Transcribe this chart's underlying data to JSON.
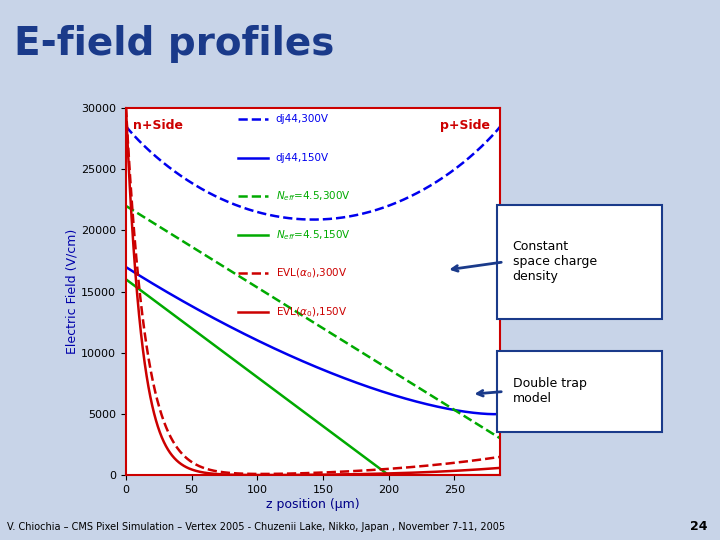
{
  "title": "E-field profiles",
  "xlabel": "z position (μm)",
  "ylabel": "Electric Field (V/cm)",
  "xlim": [
    0,
    285
  ],
  "ylim": [
    0,
    30000
  ],
  "yticks": [
    0,
    5000,
    10000,
    15000,
    20000,
    25000,
    30000
  ],
  "xticks": [
    0,
    50,
    100,
    150,
    200,
    250
  ],
  "bg_color": "#c8d4e8",
  "footer_bg": "#b0bee0",
  "title_color": "#1a3a8a",
  "footer_text": "V. Chiochia – CMS Pixel Simulation – Vertex 2005 - Chuzenii Lake, Nikko, Japan , November 7-11, 2005",
  "footer_page": "24",
  "annotation1_text": "Constant\nspace charge\ndensity",
  "annotation2_text": "Double trap\nmodel",
  "n_side_label": "n+Side",
  "p_side_label": "p+Side",
  "legend_items": [
    [
      "--",
      "#0000ee",
      "dj44,300V"
    ],
    [
      "-",
      "#0000ee",
      "dj44,150V"
    ],
    [
      "--",
      "#00aa00",
      "N_eff=4.5,300V"
    ],
    [
      "-",
      "#00aa00",
      "N_eff=4.5,150V"
    ],
    [
      "--",
      "#cc0000",
      "EVL(a0),300V"
    ],
    [
      "-",
      "#cc0000",
      "EVL(a0),150V"
    ]
  ]
}
